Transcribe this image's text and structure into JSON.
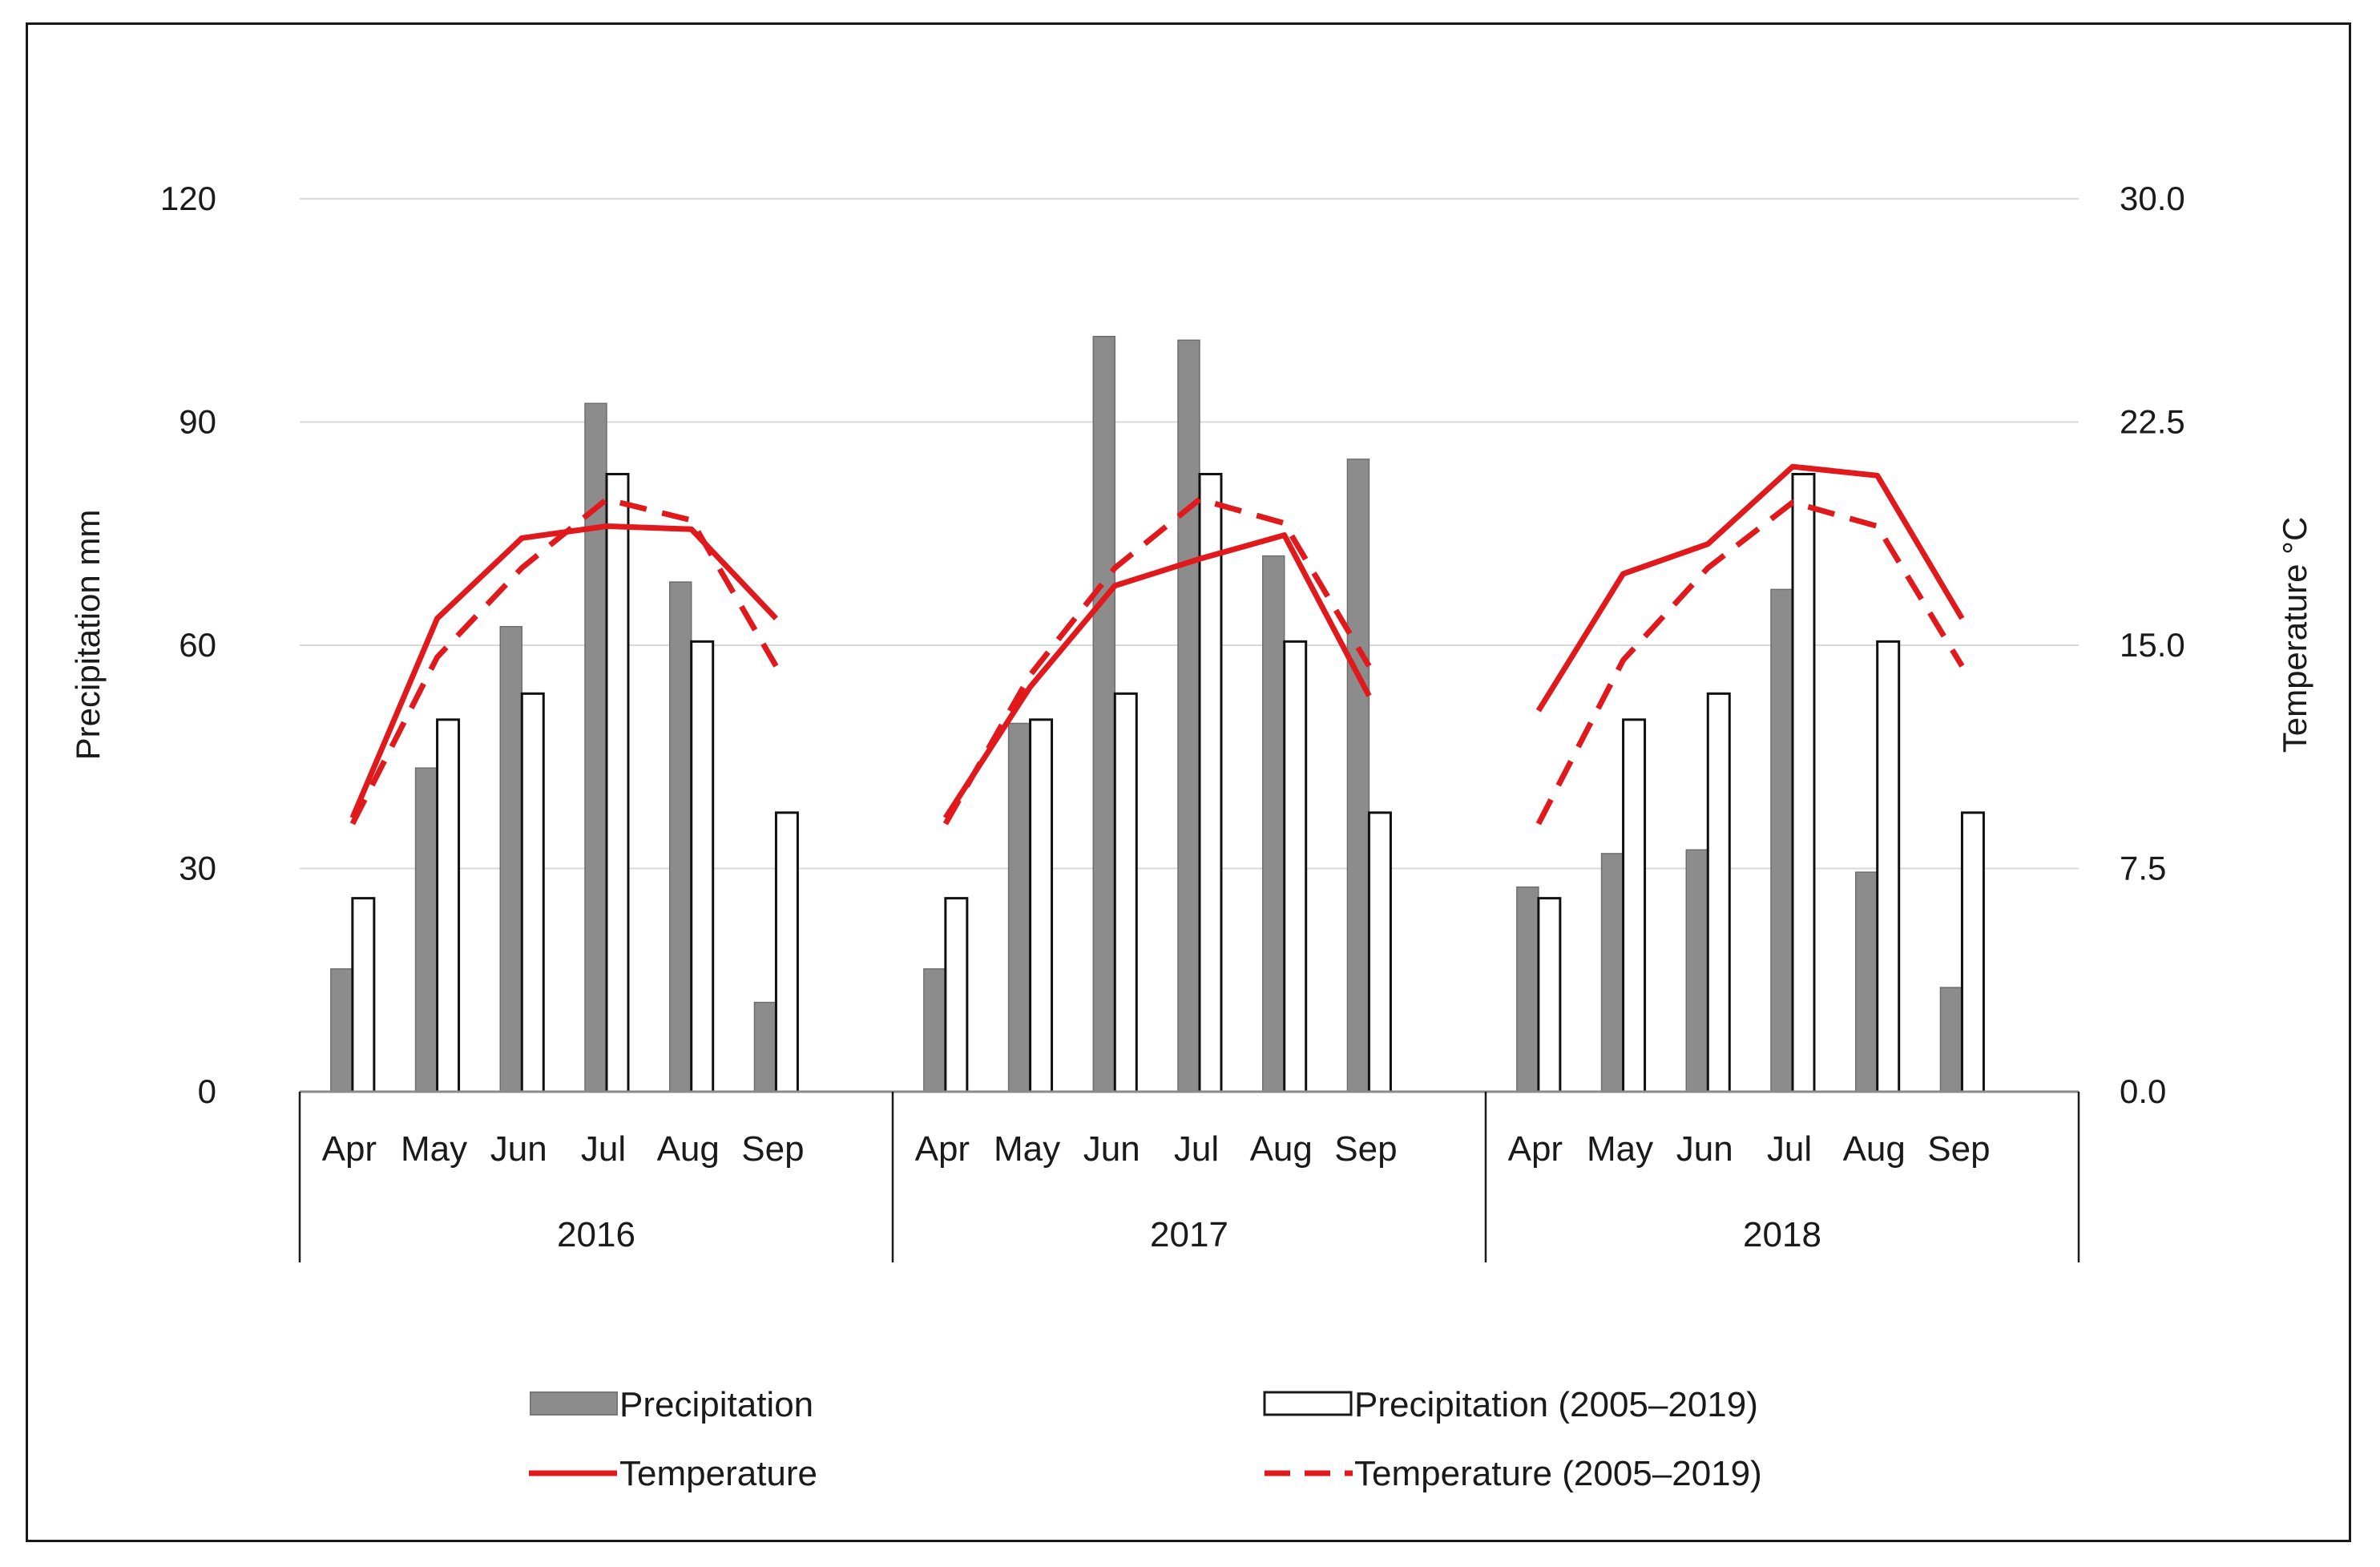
{
  "chart_data": {
    "type": "bar",
    "title": "",
    "groups": [
      "2016",
      "2017",
      "2018"
    ],
    "months": [
      "Apr",
      "May",
      "Jun",
      "Jul",
      "Aug",
      "Sep"
    ],
    "ylabel": "Precipitation mm",
    "y2label": "Temperature °C",
    "ylim": [
      0,
      120
    ],
    "y2lim": [
      0,
      30
    ],
    "yticks": [
      "0",
      "30",
      "60",
      "90",
      "120"
    ],
    "y2ticks": [
      "0.0",
      "7.5",
      "15.0",
      "22.5",
      "30.0"
    ],
    "grid": true,
    "legend_position": "bottom",
    "series": [
      {
        "name": "Precipitation",
        "kind": "bar",
        "axis": "left",
        "color": "#8c8c8c",
        "values": [
          16.5,
          43.5,
          62.5,
          92.5,
          68.5,
          12.0,
          16.5,
          49.5,
          101.5,
          101.0,
          72.0,
          85.0,
          27.5,
          32.0,
          32.5,
          67.5,
          29.5,
          14.0
        ]
      },
      {
        "name": "Precipitation (2005–2019)",
        "kind": "bar",
        "axis": "left",
        "color": "#ffffff",
        "values": [
          26.0,
          50.0,
          53.5,
          83.0,
          60.5,
          37.5,
          26.0,
          50.0,
          53.5,
          83.0,
          60.5,
          37.5,
          26.0,
          50.0,
          53.5,
          83.0,
          60.5,
          37.5
        ]
      },
      {
        "name": "Temperature",
        "kind": "line",
        "axis": "right",
        "color": "#e0191d",
        "dash": false,
        "values": [
          9.2,
          15.9,
          18.6,
          19.0,
          18.9,
          15.9,
          9.2,
          13.6,
          17.0,
          17.9,
          18.7,
          13.3,
          12.8,
          17.4,
          18.4,
          21.0,
          20.7,
          15.9
        ]
      },
      {
        "name": "Temperature (2005–2019)",
        "kind": "line",
        "axis": "right",
        "color": "#e0191d",
        "dash": true,
        "values": [
          9.0,
          14.6,
          17.6,
          19.9,
          19.2,
          14.3,
          9.0,
          14.0,
          17.6,
          19.9,
          19.1,
          14.3,
          9.0,
          14.5,
          17.6,
          19.8,
          19.0,
          14.3
        ]
      }
    ]
  }
}
